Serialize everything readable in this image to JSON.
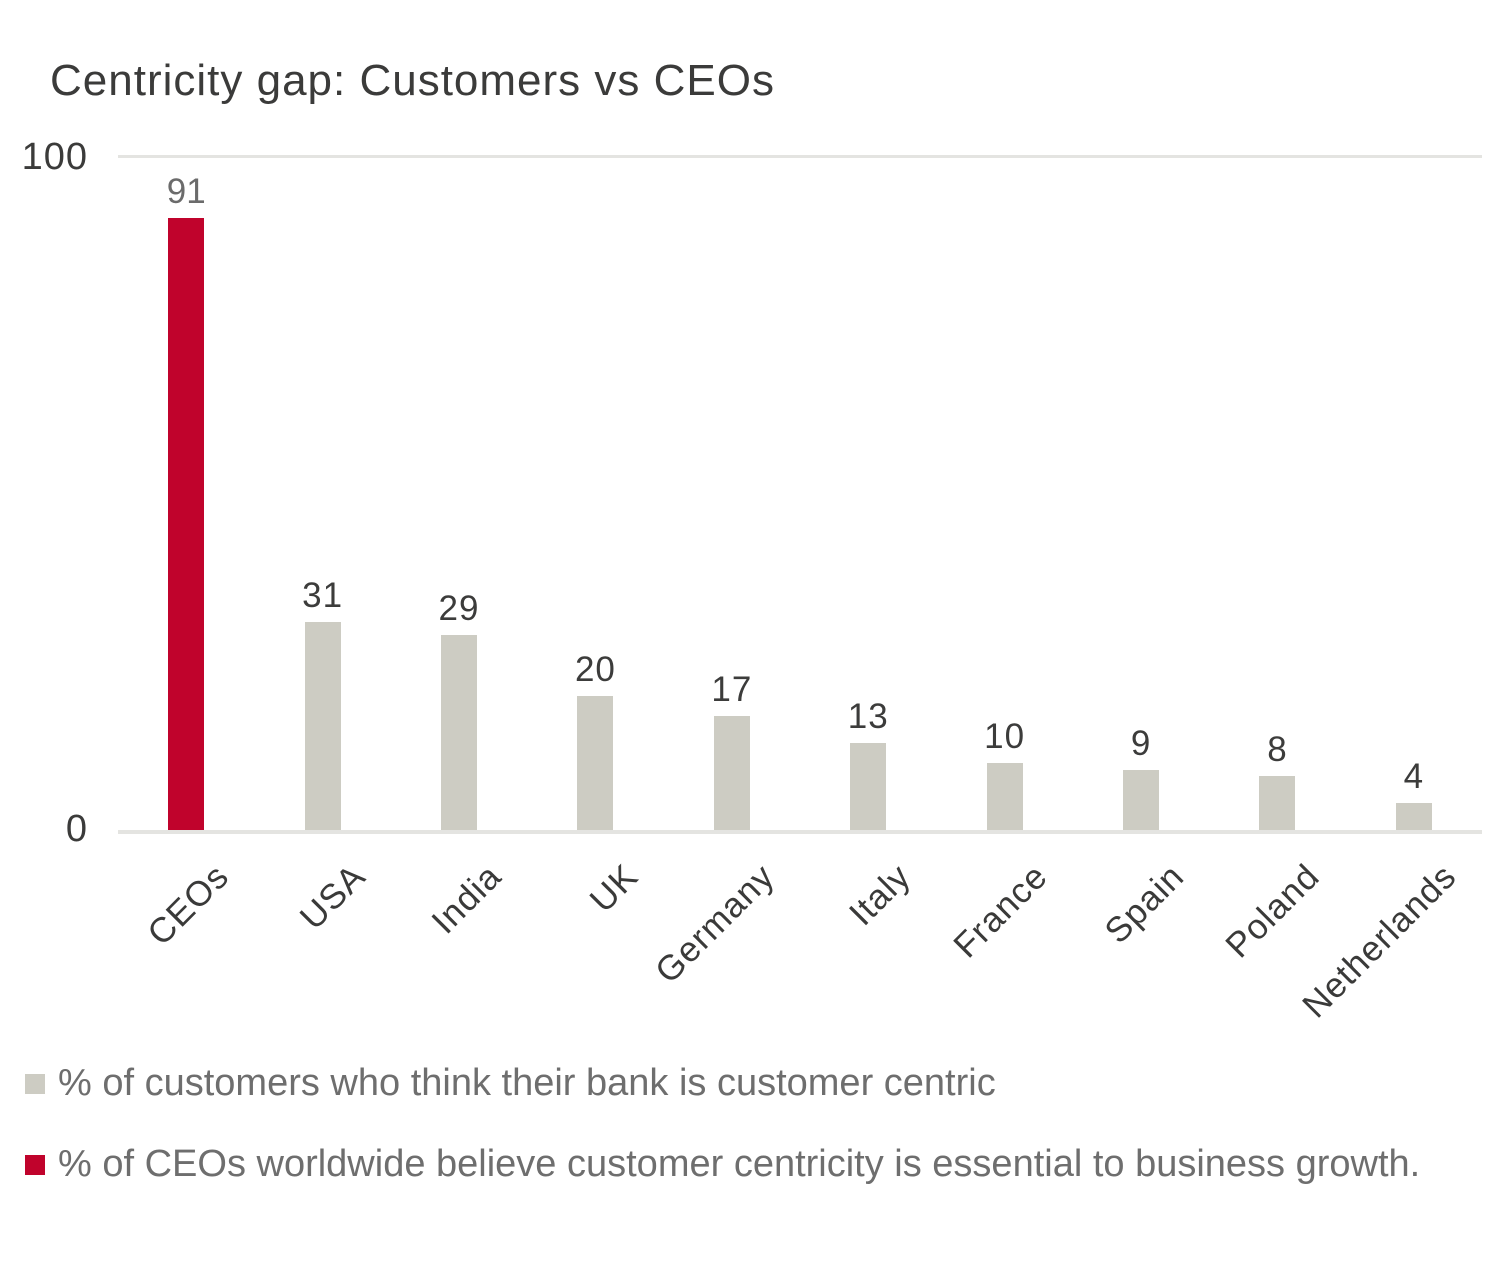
{
  "title": "Centricity gap: Customers vs CEOs",
  "y_axis": {
    "top_tick": "100",
    "bottom_tick": "0"
  },
  "colors": {
    "bar_default": "#cdccc3",
    "bar_highlight": "#c0032c",
    "gridline": "#e4e4e1",
    "title_text": "#3b3b3a",
    "value_label_text": "#3c3c3b",
    "highlight_value_label_text": "#6b6b6b",
    "legend_text": "#6e6e6e"
  },
  "chart_data": {
    "type": "bar",
    "title": "Centricity gap: Customers vs CEOs",
    "categories": [
      "CEOs",
      "USA",
      "India",
      "UK",
      "Germany",
      "Italy",
      "France",
      "Spain",
      "Poland",
      "Netherlands"
    ],
    "values": [
      91,
      31,
      29,
      20,
      17,
      13,
      10,
      9,
      8,
      4
    ],
    "highlight_index": 0,
    "xlabel": "",
    "ylabel": "",
    "ylim": [
      0,
      100
    ],
    "ytick_labels": [
      "100",
      "0"
    ],
    "grid": "horizontal lines at y=100 and y=0 only",
    "x_tick_rotation_deg": 45,
    "legend_position": "bottom-left",
    "legend": [
      {
        "label": "% of customers who think their bank is customer centric",
        "color": "#cdccc3"
      },
      {
        "label": "% of CEOs worldwide believe customer centricity is essential to business growth.",
        "color": "#c0032c"
      }
    ]
  }
}
